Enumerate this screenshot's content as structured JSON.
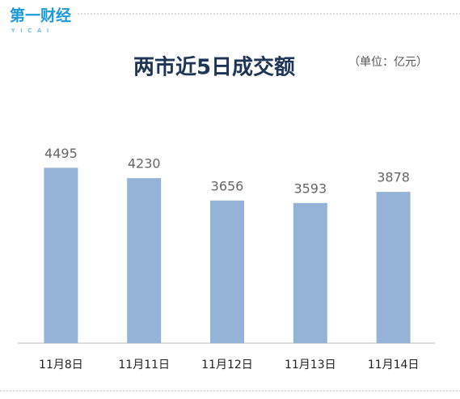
{
  "logo": "第一财经",
  "logo_sub": "YICAI",
  "chart_data": {
    "type": "bar",
    "title": "两市近5日成交额",
    "subtitle": "（单位：亿元）",
    "categories": [
      "11月8日",
      "11月11日",
      "11月12日",
      "11月13日",
      "11月14日"
    ],
    "values": [
      4495,
      4230,
      3656,
      3593,
      3878
    ],
    "color": "#95b3d7",
    "ylim": [
      0,
      5000
    ],
    "grid": false
  }
}
